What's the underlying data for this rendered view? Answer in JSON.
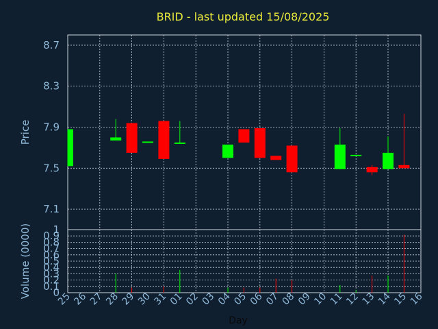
{
  "chart_data": {
    "type": "candlestick",
    "title": "BRID - last updated 15/08/2025",
    "xlabel": "Day",
    "grid": true,
    "colors": {
      "up": "#00ff00",
      "down": "#ff0000",
      "background": "#0f1f30",
      "title": "#e8e83a",
      "axis_text": "#8fb8d8"
    },
    "x": [
      "25",
      "26",
      "27",
      "28",
      "29",
      "30",
      "31",
      "01",
      "02",
      "03",
      "04",
      "05",
      "06",
      "07",
      "08",
      "09",
      "10",
      "11",
      "12",
      "13",
      "14",
      "15",
      "16"
    ],
    "price_panel": {
      "ylabel": "Price",
      "ylim": [
        6.9,
        8.8
      ],
      "yticks": [
        7.1,
        7.5,
        7.9,
        8.3,
        8.7
      ],
      "ytick_labels": [
        "7.1",
        "7.5",
        "7.9",
        "8.3",
        "8.7"
      ]
    },
    "volume_panel": {
      "ylabel": "Volume (0000)",
      "ylim": [
        0,
        1.0
      ],
      "yticks": [
        0,
        0.1,
        0.2,
        0.3,
        0.4,
        0.5,
        0.6,
        0.7,
        0.8,
        0.9,
        1
      ],
      "ytick_labels": [
        "0",
        "0.1",
        "0.2",
        "0.3",
        "0.4",
        "0.5",
        "0.6",
        "0.7",
        "0.8",
        "0.9",
        "1"
      ]
    },
    "candles": [
      {
        "day": "25",
        "open": 7.52,
        "close": 7.88,
        "high": 7.88,
        "low": 7.52,
        "volume": 0.0
      },
      {
        "day": "28",
        "open": 7.77,
        "close": 7.8,
        "high": 7.98,
        "low": 7.77,
        "volume": 0.3
      },
      {
        "day": "29",
        "open": 7.94,
        "close": 7.65,
        "high": 7.94,
        "low": 7.65,
        "volume": 0.08
      },
      {
        "day": "30",
        "open": 7.75,
        "close": 7.76,
        "high": 7.76,
        "low": 7.75,
        "volume": 0.0
      },
      {
        "day": "31",
        "open": 7.96,
        "close": 7.59,
        "high": 7.96,
        "low": 7.59,
        "volume": 0.1
      },
      {
        "day": "01",
        "open": 7.74,
        "close": 7.75,
        "high": 7.96,
        "low": 7.74,
        "volume": 0.36
      },
      {
        "day": "04",
        "open": 7.6,
        "close": 7.73,
        "high": 7.73,
        "low": 7.6,
        "volume": 0.08
      },
      {
        "day": "05",
        "open": 7.88,
        "close": 7.75,
        "high": 7.88,
        "low": 7.75,
        "volume": 0.08
      },
      {
        "day": "06",
        "open": 7.89,
        "close": 7.6,
        "high": 7.89,
        "low": 7.6,
        "volume": 0.08
      },
      {
        "day": "07",
        "open": 7.62,
        "close": 7.58,
        "high": 7.62,
        "low": 7.58,
        "volume": 0.22
      },
      {
        "day": "08",
        "open": 7.72,
        "close": 7.46,
        "high": 7.72,
        "low": 7.46,
        "volume": 0.2
      },
      {
        "day": "11",
        "open": 7.49,
        "close": 7.73,
        "high": 7.89,
        "low": 7.49,
        "volume": 0.12
      },
      {
        "day": "12",
        "open": 7.62,
        "close": 7.63,
        "high": 7.63,
        "low": 7.62,
        "volume": 0.04
      },
      {
        "day": "13",
        "open": 7.51,
        "close": 7.46,
        "high": 7.53,
        "low": 7.43,
        "volume": 0.27
      },
      {
        "day": "14",
        "open": 7.49,
        "close": 7.65,
        "high": 7.81,
        "low": 7.49,
        "volume": 0.27
      },
      {
        "day": "15",
        "open": 7.53,
        "close": 7.5,
        "high": 8.03,
        "low": 7.5,
        "volume": 0.92
      }
    ]
  }
}
